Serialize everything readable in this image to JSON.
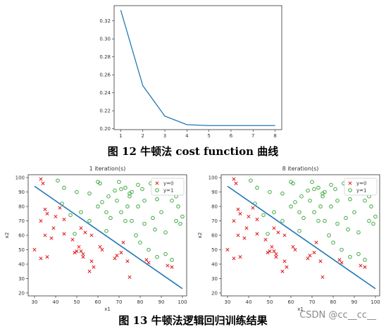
{
  "figures": [
    {
      "label": "图  12  牛顿法 cost function 曲线"
    },
    {
      "label": "图  13  牛顿法逻辑回归训练结果"
    }
  ],
  "watermark": "CSDN @cc__cc__",
  "colors": {
    "line": "#1f77b4",
    "class0": "#e41a1c",
    "class1": "#2ca02c"
  },
  "chart_data": [
    {
      "type": "line",
      "title": "",
      "xlabel": "",
      "ylabel": "",
      "x": [
        1,
        2,
        3,
        4,
        5,
        6,
        7,
        8
      ],
      "series": [
        {
          "values": [
            0.332,
            0.248,
            0.214,
            0.2045,
            0.2035,
            0.2035,
            0.2035,
            0.2035
          ]
        }
      ],
      "xlim": [
        0.7,
        8.3
      ],
      "ylim": [
        0.199,
        0.337
      ],
      "xticks": [
        1,
        2,
        3,
        4,
        5,
        6,
        7,
        8
      ],
      "yticks": [
        0.2,
        0.22,
        0.24,
        0.26,
        0.28,
        0.3,
        0.32
      ],
      "grid": false
    },
    {
      "type": "scatter",
      "title": "1 iteration(s)",
      "xlabel": "x1",
      "ylabel": "x2",
      "xlim": [
        27,
        102
      ],
      "ylim": [
        18,
        102
      ],
      "xticks": [
        30,
        40,
        50,
        60,
        70,
        80,
        90,
        100
      ],
      "yticks": [
        20,
        30,
        40,
        50,
        60,
        70,
        80,
        90,
        100
      ],
      "legend": "top-right",
      "series": [
        {
          "name": "y=0",
          "marker": "x",
          "points": [
            [
              34,
              96
            ],
            [
              33,
              99
            ],
            [
              35,
              78
            ],
            [
              36,
              75
            ],
            [
              33,
              70
            ],
            [
              39,
              65
            ],
            [
              42,
              79
            ],
            [
              40,
              73
            ],
            [
              44,
              71
            ],
            [
              38,
              58
            ],
            [
              35,
              60
            ],
            [
              36,
              45
            ],
            [
              30,
              50
            ],
            [
              33,
              44
            ],
            [
              44,
              61
            ],
            [
              48,
              57
            ],
            [
              51,
              52
            ],
            [
              50,
              49
            ],
            [
              53,
              47
            ],
            [
              54,
              62
            ],
            [
              52,
              65
            ],
            [
              57,
              60
            ],
            [
              57,
              42
            ],
            [
              53,
              45
            ],
            [
              56,
              35
            ],
            [
              62,
              50
            ],
            [
              61,
              52
            ],
            [
              58,
              38
            ],
            [
              68,
              44
            ],
            [
              69,
              46
            ],
            [
              71,
              48
            ],
            [
              72,
              55
            ],
            [
              74,
              42
            ],
            [
              75,
              31
            ],
            [
              83,
              43
            ],
            [
              93,
              39
            ],
            [
              95,
              38
            ],
            [
              84,
              41
            ],
            [
              49,
              48
            ],
            [
              52,
              49
            ]
          ]
        },
        {
          "name": "y=1",
          "marker": "o",
          "points": [
            [
              41,
              98
            ],
            [
              44,
              93
            ],
            [
              50,
              90
            ],
            [
              56,
              89
            ],
            [
              60,
              97
            ],
            [
              61,
              96
            ],
            [
              65,
              87
            ],
            [
              68,
              91
            ],
            [
              70,
              97
            ],
            [
              71,
              92
            ],
            [
              73,
              93
            ],
            [
              75,
              89
            ],
            [
              76,
              90
            ],
            [
              79,
              95
            ],
            [
              81,
              92
            ],
            [
              85,
              96
            ],
            [
              88,
              85
            ],
            [
              91,
              94
            ],
            [
              94,
              89
            ],
            [
              95,
              84
            ],
            [
              97,
              87
            ],
            [
              98,
              80
            ],
            [
              100,
              73
            ],
            [
              90,
              76
            ],
            [
              82,
              84
            ],
            [
              79,
              80
            ],
            [
              75,
              87
            ],
            [
              74,
              80
            ],
            [
              71,
              76
            ],
            [
              64,
              76
            ],
            [
              62,
              83
            ],
            [
              60,
              80
            ],
            [
              66,
              72
            ],
            [
              73,
              70
            ],
            [
              76,
              70
            ],
            [
              82,
              68
            ],
            [
              87,
              64
            ],
            [
              92,
              62
            ],
            [
              97,
              70
            ],
            [
              99,
              68
            ],
            [
              80,
              55
            ],
            [
              84,
              50
            ],
            [
              88,
              45
            ],
            [
              92,
              47
            ],
            [
              95,
              43
            ],
            [
              64,
              63
            ],
            [
              56,
              70
            ],
            [
              52,
              76
            ],
            [
              47,
              74
            ],
            [
              43,
              82
            ],
            [
              49,
              61
            ],
            [
              86,
              72
            ],
            [
              69,
              84
            ],
            [
              78,
              60
            ]
          ]
        }
      ],
      "line": [
        [
          30,
          94
        ],
        [
          100,
          23
        ]
      ]
    },
    {
      "type": "scatter",
      "title": "8 iteration(s)",
      "xlabel": "x1",
      "ylabel": "x2",
      "xlim": [
        27,
        102
      ],
      "ylim": [
        18,
        102
      ],
      "xticks": [
        30,
        40,
        50,
        60,
        70,
        80,
        90,
        100
      ],
      "yticks": [
        20,
        30,
        40,
        50,
        60,
        70,
        80,
        90,
        100
      ],
      "legend": "top-right",
      "series": [
        {
          "name": "y=0",
          "marker": "x",
          "points": [
            [
              34,
              96
            ],
            [
              33,
              99
            ],
            [
              35,
              78
            ],
            [
              36,
              75
            ],
            [
              33,
              70
            ],
            [
              39,
              65
            ],
            [
              42,
              79
            ],
            [
              40,
              73
            ],
            [
              44,
              71
            ],
            [
              38,
              58
            ],
            [
              35,
              60
            ],
            [
              36,
              45
            ],
            [
              30,
              50
            ],
            [
              33,
              44
            ],
            [
              44,
              61
            ],
            [
              48,
              57
            ],
            [
              51,
              52
            ],
            [
              50,
              49
            ],
            [
              53,
              47
            ],
            [
              54,
              62
            ],
            [
              52,
              65
            ],
            [
              57,
              60
            ],
            [
              57,
              42
            ],
            [
              53,
              45
            ],
            [
              56,
              35
            ],
            [
              62,
              50
            ],
            [
              61,
              52
            ],
            [
              58,
              38
            ],
            [
              68,
              44
            ],
            [
              69,
              46
            ],
            [
              71,
              48
            ],
            [
              72,
              55
            ],
            [
              74,
              42
            ],
            [
              75,
              31
            ],
            [
              83,
              43
            ],
            [
              93,
              39
            ],
            [
              95,
              38
            ],
            [
              84,
              41
            ],
            [
              49,
              48
            ],
            [
              52,
              49
            ]
          ]
        },
        {
          "name": "y=1",
          "marker": "o",
          "points": [
            [
              41,
              98
            ],
            [
              44,
              93
            ],
            [
              50,
              90
            ],
            [
              56,
              89
            ],
            [
              60,
              97
            ],
            [
              61,
              96
            ],
            [
              65,
              87
            ],
            [
              68,
              91
            ],
            [
              70,
              97
            ],
            [
              71,
              92
            ],
            [
              73,
              93
            ],
            [
              75,
              89
            ],
            [
              76,
              90
            ],
            [
              79,
              95
            ],
            [
              81,
              92
            ],
            [
              85,
              96
            ],
            [
              88,
              85
            ],
            [
              91,
              94
            ],
            [
              94,
              89
            ],
            [
              95,
              84
            ],
            [
              97,
              87
            ],
            [
              98,
              80
            ],
            [
              100,
              73
            ],
            [
              90,
              76
            ],
            [
              82,
              84
            ],
            [
              79,
              80
            ],
            [
              75,
              87
            ],
            [
              74,
              80
            ],
            [
              71,
              76
            ],
            [
              64,
              76
            ],
            [
              62,
              83
            ],
            [
              60,
              80
            ],
            [
              66,
              72
            ],
            [
              73,
              70
            ],
            [
              76,
              70
            ],
            [
              82,
              68
            ],
            [
              87,
              64
            ],
            [
              92,
              62
            ],
            [
              97,
              70
            ],
            [
              99,
              68
            ],
            [
              80,
              55
            ],
            [
              84,
              50
            ],
            [
              88,
              45
            ],
            [
              92,
              47
            ],
            [
              95,
              43
            ],
            [
              64,
              63
            ],
            [
              56,
              70
            ],
            [
              52,
              76
            ],
            [
              47,
              74
            ],
            [
              43,
              82
            ],
            [
              49,
              61
            ],
            [
              86,
              72
            ],
            [
              69,
              84
            ],
            [
              78,
              60
            ]
          ]
        }
      ],
      "line": [
        [
          30,
          94
        ],
        [
          100,
          23
        ]
      ]
    }
  ]
}
